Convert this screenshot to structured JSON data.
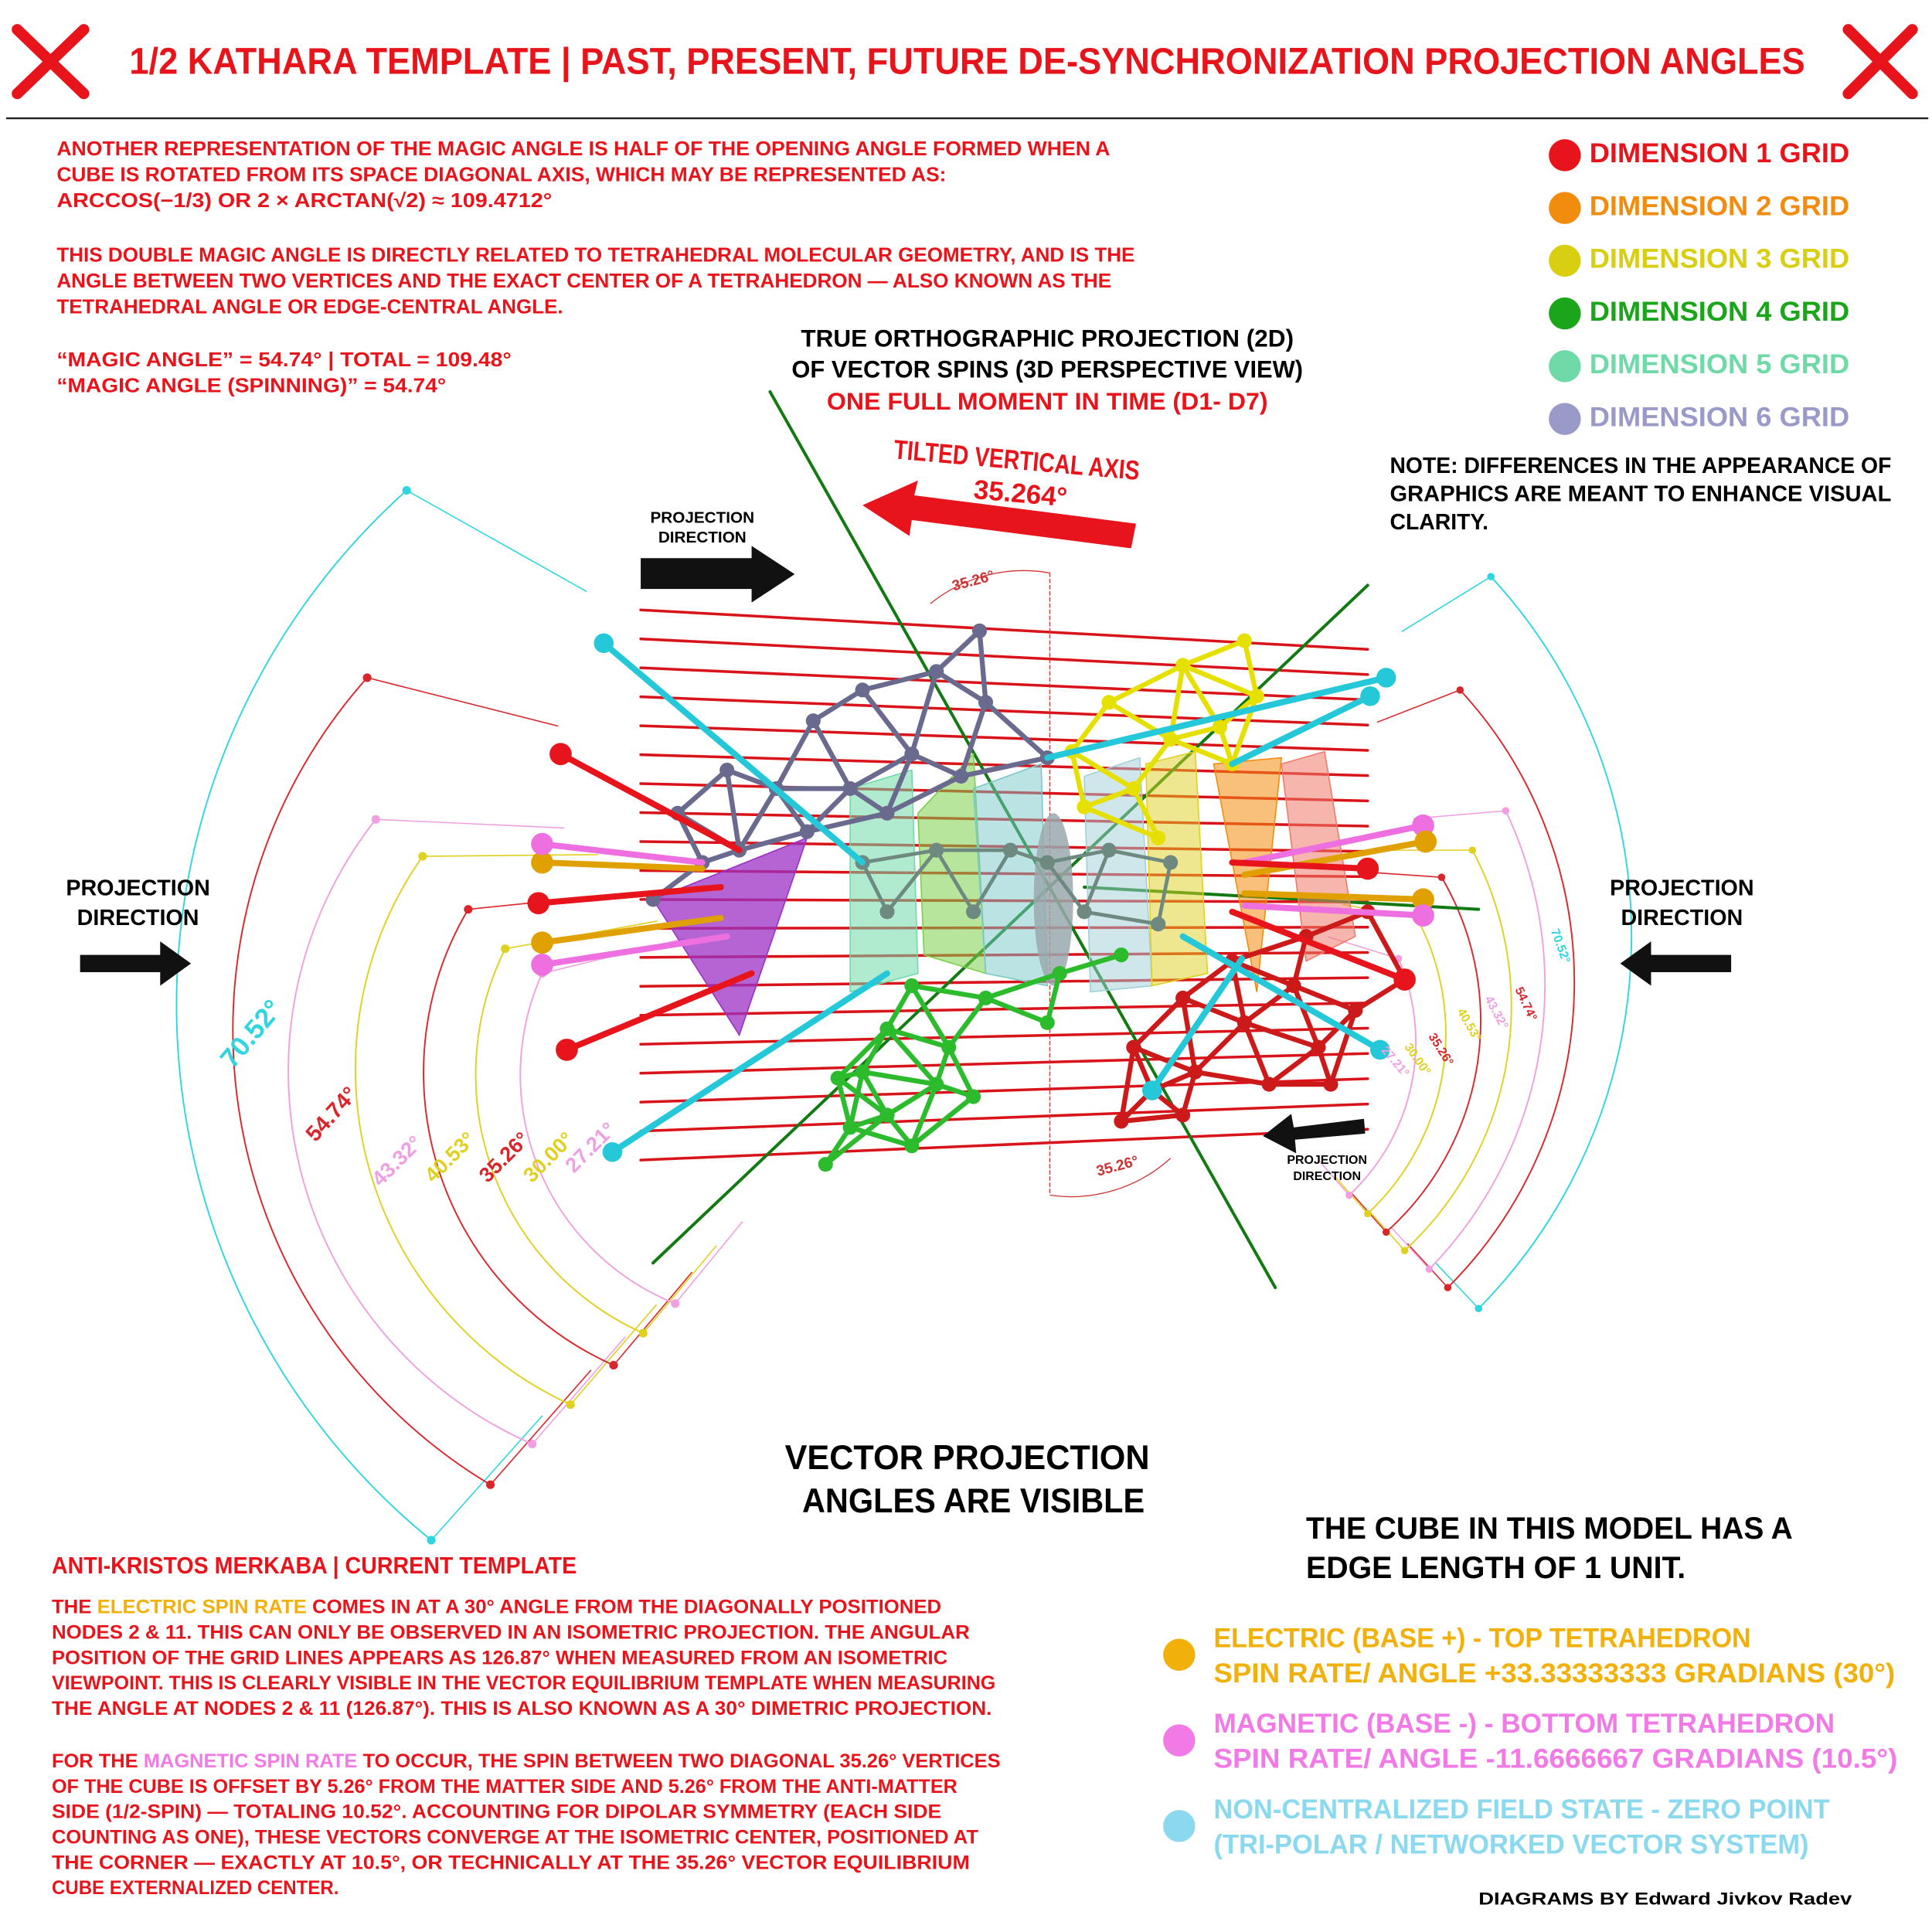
{
  "header": {
    "title": "1/2 KATHARA TEMPLATE | PAST, PRESENT, FUTURE DE-SYNCHRONIZATION PROJECTION ANGLES"
  },
  "intro": {
    "paragraph_1": [
      "ANOTHER REPRESENTATION OF THE MAGIC ANGLE IS HALF OF THE OPENING ANGLE FORMED WHEN A",
      "CUBE IS ROTATED FROM ITS SPACE DIAGONAL AXIS, WHICH MAY BE REPRESENTED AS:",
      "ARCCOS(−1/3) OR 2 × ARCTAN(√2) ≈ 109.4712°"
    ],
    "paragraph_2": [
      "THIS DOUBLE MAGIC ANGLE IS DIRECTLY RELATED TO TETRAHEDRAL MOLECULAR GEOMETRY, AND IS THE",
      "ANGLE BETWEEN TWO VERTICES AND THE EXACT CENTER OF A TETRAHEDRON — ALSO KNOWN AS THE",
      "TETRAHEDRAL ANGLE OR EDGE-CENTRAL ANGLE."
    ],
    "magic_angles": [
      "“MAGIC ANGLE” = 54.74° | TOTAL = 109.48°",
      "“MAGIC ANGLE (SPINNING)” = 54.74°"
    ]
  },
  "center_caption": {
    "lines": [
      "TRUE ORTHOGRAPHIC PROJECTION (2D)",
      "OF VECTOR SPINS (3D PERSPECTIVE VIEW)",
      "ONE FULL MOMENT IN TIME (D1- D7)"
    ]
  },
  "tilted_axis": {
    "label": "TILTED VERTICAL AXIS",
    "angle": "35.264°"
  },
  "legend": [
    {
      "label": "DIMENSION 1 GRID",
      "color": "#e8141b"
    },
    {
      "label": "DIMENSION 2 GRID",
      "color": "#f28c0f"
    },
    {
      "label": "DIMENSION 3 GRID",
      "color": "#d9cf12"
    },
    {
      "label": "DIMENSION 4 GRID",
      "color": "#1aa51a"
    },
    {
      "label": "DIMENSION 5 GRID",
      "color": "#6fd9a8"
    },
    {
      "label": "DIMENSION 6 GRID",
      "color": "#9a9ac9"
    }
  ],
  "note": [
    "NOTE: DIFFERENCES IN THE APPEARANCE OF",
    "GRAPHICS ARE MEANT TO ENHANCE VISUAL",
    "CLARITY."
  ],
  "projection_labels": [
    {
      "lines": [
        "PROJECTION",
        "DIRECTION"
      ]
    },
    {
      "lines": [
        "PROJECTION",
        "DIRECTION"
      ]
    },
    {
      "lines": [
        "PROJECTION",
        "DIRECTION"
      ]
    },
    {
      "lines": [
        "PROJECTION",
        "DIRECTION"
      ]
    }
  ],
  "arc_colors": [
    "#2fd6e0",
    "#d9262b",
    "#f0a0e0",
    "#e0d020",
    "#d9262b",
    "#e0d020",
    "#f0a0e0"
  ],
  "angles_left": [
    "70.52°",
    "54.74°",
    "43.32°",
    "40.53°",
    "35.26°",
    "30.00°",
    "27.21°"
  ],
  "angles_right": [
    "70.52°",
    "54.74°",
    "43.32°",
    "40.53°",
    "35.26°",
    "30.00°",
    "27.21°"
  ],
  "grid_angles": [
    "35.26°",
    "35.26°"
  ],
  "vector_caption": [
    "VECTOR PROJECTION",
    "ANGLES ARE VISIBLE"
  ],
  "cube_note": [
    "THE CUBE IN THIS MODEL HAS A",
    "EDGE LENGTH OF 1 UNIT."
  ],
  "spin_key": [
    {
      "color": "#f2b10a",
      "lines": [
        "ELECTRIC (BASE +) - TOP TETRAHEDRON",
        "SPIN RATE/ ANGLE +33.33333333 GRADIANS (30°)"
      ]
    },
    {
      "color": "#f27ae6",
      "lines": [
        "MAGNETIC (BASE -) - BOTTOM TETRAHEDRON",
        "SPIN RATE/ ANGLE -11.6666667 GRADIANS (10.5°)"
      ]
    },
    {
      "color": "#8ad9ef",
      "lines": [
        "NON-CENTRALIZED FIELD STATE - ZERO POINT",
        "(TRI-POLAR / NETWORKED VECTOR SYSTEM)"
      ]
    }
  ],
  "bottom_text": {
    "heading": "ANTI-KRISTOS MERKABA | CURRENT TEMPLATE",
    "paragraphs": [
      {
        "highlight_color": "#f2b10a",
        "lines": [
          [
            "THE",
            "ELECTRIC SPIN RATE",
            "COMES IN AT A 30° ANGLE FROM THE DIAGONALLY POSITIONED"
          ],
          [
            "NODES 2 & 11. THIS CAN ONLY BE OBSERVED IN AN ISOMETRIC PROJECTION. THE ANGULAR"
          ],
          [
            "POSITION OF THE GRID LINES APPEARS AS 126.87° WHEN MEASURED FROM AN ISOMETRIC"
          ],
          [
            "VIEWPOINT. THIS IS CLEARLY VISIBLE IN THE VECTOR EQUILIBRIUM TEMPLATE WHEN MEASURING"
          ],
          [
            "THE ANGLE AT NODES 2 & 11 (126.87°). THIS IS ALSO KNOWN AS A 30° DIMETRIC PROJECTION."
          ]
        ]
      },
      {
        "highlight_color": "#f27ae6",
        "lines": [
          [
            "FOR THE",
            "MAGNETIC SPIN RATE",
            "TO OCCUR, THE SPIN BETWEEN TWO DIAGONAL 35.26° VERTICES"
          ],
          [
            "OF THE CUBE IS OFFSET BY 5.26° FROM THE MATTER SIDE AND 5.26° FROM THE ANTI-MATTER"
          ],
          [
            "SIDE (1/2-SPIN) — TOTALING 10.52°. ACCOUNTING FOR DIPOLAR SYMMETRY (EACH SIDE"
          ],
          [
            "COUNTING AS ONE), THESE VECTORS CONVERGE AT THE ISOMETRIC CENTER, POSITIONED AT"
          ],
          [
            "THE CORNER — EXACTLY AT 10.5°, OR TECHNICALLY AT THE 35.26° VECTOR EQUILIBRIUM"
          ],
          [
            "CUBE EXTERNALIZED CENTER."
          ]
        ]
      }
    ]
  },
  "credit": "DIAGRAMS BY Edward Jivkov Radev"
}
